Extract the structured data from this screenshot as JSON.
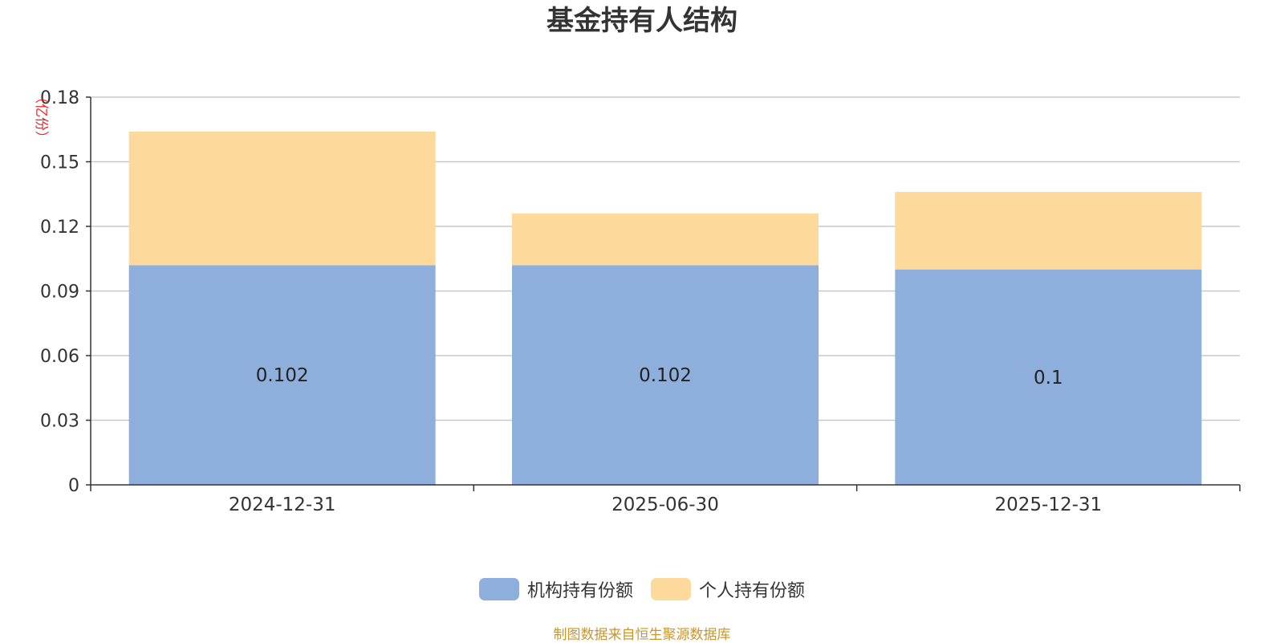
{
  "chart_data": {
    "type": "bar",
    "stacked": true,
    "title": "基金持有人结构",
    "ylabel": "（亿份）",
    "xlabel": "",
    "categories": [
      "2024-12-31",
      "2025-06-30",
      "2025-12-31"
    ],
    "ylim": [
      0,
      0.18
    ],
    "yticks": [
      0,
      0.03,
      0.06,
      0.09,
      0.12,
      0.15,
      0.18
    ],
    "ytick_labels": [
      "0",
      "0.03",
      "0.06",
      "0.09",
      "0.12",
      "0.15",
      "0.18"
    ],
    "grid": true,
    "legend_position": "bottom-center",
    "series": [
      {
        "name": "机构持有份额",
        "values": [
          0.102,
          0.102,
          0.1
        ],
        "labels": [
          "0.102",
          "0.102",
          "0.1"
        ],
        "color": "#8eaedb"
      },
      {
        "name": "个人持有份额",
        "values": [
          0.062,
          0.024,
          0.036
        ],
        "color": "#fdd99b"
      }
    ],
    "source": "制图数据来自恒生聚源数据库",
    "ylabel_color": "#e8262a",
    "source_color": "#c9962e"
  }
}
